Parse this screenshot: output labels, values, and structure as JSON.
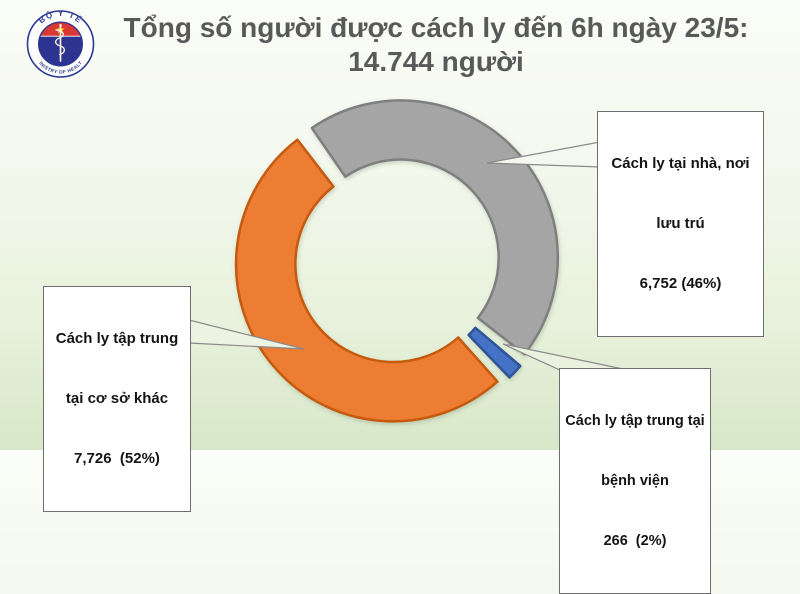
{
  "header": {
    "title_line1": "Tổng số người được cách ly đến 6h ngày 23/5:",
    "title_line2": "14.744 người"
  },
  "logo": {
    "top_text": "BỘ Y TẾ",
    "bottom_text": "MINISTRY OF HEALTH",
    "ring_color": "#2b3a92",
    "flag_red": "#da3832",
    "star_yellow": "#ffd400",
    "disc_navy": "#2d3390"
  },
  "chart_data": {
    "type": "donut",
    "title": "Tổng số người được cách ly đến 6h ngày 23/5: 14.744 người",
    "total_value": "14.744",
    "total_unit": "người",
    "rotation_deg": -36,
    "legend_position": "callouts",
    "grid": false,
    "segments": [
      {
        "name": "home-residence",
        "label": "Cách ly tại nhà, nơi lưu trú",
        "value": 6752,
        "value_text": "6,752",
        "pct": 46,
        "color": "#a5a5a5",
        "border": "#7f7f7f"
      },
      {
        "name": "hospital",
        "label": "Cách ly tập trung tại bệnh viện",
        "value": 266,
        "value_text": "266",
        "pct": 2,
        "color": "#4472c4",
        "border": "#2f5597"
      },
      {
        "name": "other-facility",
        "label": "Cách ly tập trung tại cơ sở khác",
        "value": 7726,
        "value_text": "7,726",
        "pct": 52,
        "color": "#ed7d31",
        "border": "#c55a11"
      }
    ]
  },
  "callouts": {
    "home": {
      "line1": "Cách ly tại nhà, nơi",
      "line2": "lưu trú",
      "line3": "6,752 (46%)"
    },
    "other": {
      "line1": "Cách ly tập trung",
      "line2": "tại cơ sở khác",
      "line3": "7,726  (52%)"
    },
    "hospital": {
      "line1": "Cách ly tập trung tại",
      "line2": "bệnh viện",
      "line3": "266  (2%)"
    }
  }
}
